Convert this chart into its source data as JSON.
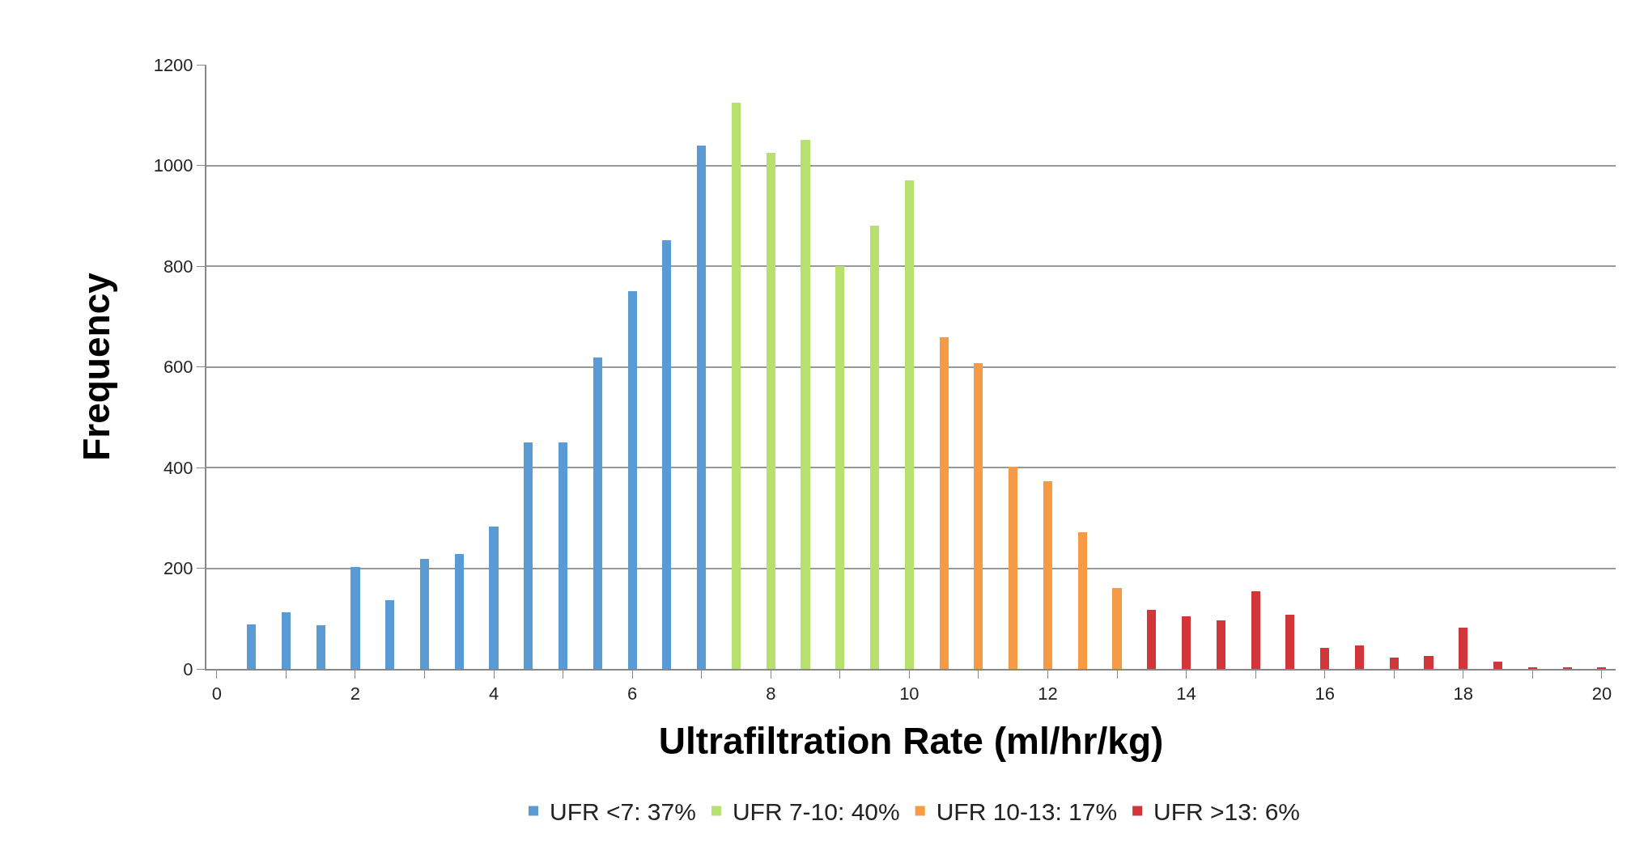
{
  "chart_data": {
    "type": "bar",
    "xlabel": "Ultrafiltration Rate (ml/hr/kg)",
    "ylabel": "Frequency",
    "series": [
      {
        "name": "UFR <7: 37%",
        "color": "#5b9bd5",
        "x": [
          0.5,
          1,
          1.5,
          2,
          2.5,
          3,
          3.5,
          4,
          4.5,
          5,
          5.5,
          6,
          6.5,
          7
        ],
        "values": [
          88,
          112,
          87,
          203,
          137,
          218,
          228,
          282,
          450,
          450,
          618,
          750,
          852,
          1040
        ]
      },
      {
        "name": "UFR 7-10: 40%",
        "color": "#b8e06e",
        "x": [
          7.5,
          8,
          8.5,
          9,
          9.5,
          10
        ],
        "values": [
          1125,
          1025,
          1050,
          800,
          880,
          970
        ]
      },
      {
        "name": "UFR 10-13: 17%",
        "color": "#f79a46",
        "x": [
          10.5,
          11,
          11.5,
          12,
          12.5,
          13
        ],
        "values": [
          658,
          607,
          402,
          373,
          272,
          160
        ]
      },
      {
        "name": "UFR >13: 6%",
        "color": "#d1373a",
        "x": [
          13.5,
          14,
          14.5,
          15,
          15.5,
          16,
          16.5,
          17,
          17.5,
          18,
          18.5,
          19,
          19.5,
          20
        ],
        "values": [
          118,
          105,
          97,
          155,
          108,
          42,
          47,
          23,
          25,
          82,
          15,
          2,
          2,
          2
        ]
      }
    ],
    "xlim": [
      -0.15,
      20.2
    ],
    "xticks": [
      0,
      {
        "value": 1,
        "label": null
      },
      2,
      {
        "value": 3,
        "label": null
      },
      4,
      {
        "value": 5,
        "label": null
      },
      6,
      {
        "value": 7,
        "label": null
      },
      8,
      {
        "value": 9,
        "label": null
      },
      10,
      {
        "value": 11,
        "label": null
      },
      12,
      {
        "value": 13,
        "label": null
      },
      14,
      {
        "value": 15,
        "label": null
      },
      16,
      {
        "value": 17,
        "label": null
      },
      18,
      {
        "value": 19,
        "label": null
      },
      20
    ],
    "ylim": [
      0,
      1200
    ],
    "yticks": [
      0,
      200,
      400,
      600,
      800,
      1000,
      1200
    ],
    "grid": "y",
    "legend": "bottom"
  }
}
